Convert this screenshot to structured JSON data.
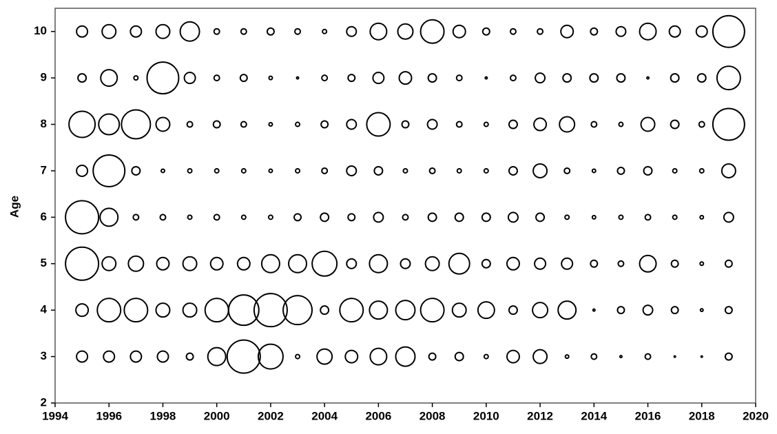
{
  "chart_data": {
    "type": "bubble",
    "y_label": "Age",
    "color": "#000000",
    "xlim": [
      1994,
      2020
    ],
    "xticks": [
      1994,
      1996,
      1998,
      2000,
      2002,
      2004,
      2006,
      2008,
      2010,
      2012,
      2014,
      2016,
      2018,
      2020
    ],
    "ylim": [
      2,
      10.5
    ],
    "yticks": [
      2,
      3,
      4,
      5,
      6,
      7,
      8,
      9,
      10
    ],
    "x": [
      1995,
      1996,
      1997,
      1998,
      1999,
      2000,
      2001,
      2002,
      2003,
      2004,
      2005,
      2006,
      2007,
      2008,
      2009,
      2010,
      2011,
      2012,
      2013,
      2014,
      2015,
      2016,
      2017,
      2018,
      2019
    ],
    "series": [
      {
        "values": [
          10,
          10,
          10,
          10,
          10,
          10,
          10,
          10,
          10,
          10,
          10,
          10,
          10,
          10,
          10,
          10,
          10,
          10,
          10,
          10,
          10,
          10,
          10,
          10,
          10
        ],
        "sizes": [
          8,
          10,
          8,
          10,
          14,
          4,
          4,
          5,
          4,
          3,
          7,
          12,
          11,
          17,
          9,
          5,
          4,
          4,
          9,
          5,
          7,
          12,
          8,
          8,
          23
        ]
      },
      {
        "values": [
          9,
          9,
          9,
          9,
          9,
          9,
          9,
          9,
          9,
          9,
          9,
          9,
          9,
          9,
          9,
          9,
          9,
          9,
          9,
          9,
          9,
          9,
          9,
          9,
          9
        ],
        "sizes": [
          6,
          12,
          3,
          23,
          8,
          4,
          5,
          2.5,
          1.5,
          4,
          5,
          8,
          9,
          6,
          4,
          1.5,
          4,
          7,
          6,
          6,
          6,
          1.5,
          6,
          6,
          17
        ]
      },
      {
        "values": [
          8,
          8,
          8,
          8,
          8,
          8,
          8,
          8,
          8,
          8,
          8,
          8,
          8,
          8,
          8,
          8,
          8,
          8,
          8,
          8,
          8,
          8,
          8,
          8,
          8
        ],
        "sizes": [
          19,
          15,
          21,
          10,
          4,
          5,
          4,
          2.5,
          3,
          5,
          7,
          17,
          5,
          7,
          4,
          3,
          6,
          9,
          11,
          4,
          3,
          10,
          6,
          4,
          23
        ]
      },
      {
        "values": [
          7,
          7,
          7,
          7,
          7,
          7,
          7,
          7,
          7,
          7,
          7,
          7,
          7,
          7,
          7,
          7,
          7,
          7,
          7,
          7,
          7,
          7,
          7,
          7,
          7
        ],
        "sizes": [
          8,
          23,
          6,
          2.5,
          3,
          3,
          3,
          2.5,
          3,
          4,
          7,
          6,
          3,
          4,
          3,
          3,
          6,
          10,
          4,
          2.5,
          5,
          6,
          3,
          3,
          10
        ]
      },
      {
        "values": [
          6,
          6,
          6,
          6,
          6,
          6,
          6,
          6,
          6,
          6,
          6,
          6,
          6,
          6,
          6,
          6,
          6,
          6,
          6,
          6,
          6,
          6,
          6,
          6,
          6
        ],
        "sizes": [
          24,
          13,
          4,
          4,
          3,
          4,
          3,
          3,
          5,
          6,
          5,
          7,
          4,
          6,
          6,
          6,
          7,
          6,
          3,
          2.5,
          3,
          4,
          3,
          2.5,
          7
        ]
      },
      {
        "values": [
          5,
          5,
          5,
          5,
          5,
          5,
          5,
          5,
          5,
          5,
          5,
          5,
          5,
          5,
          5,
          5,
          5,
          5,
          5,
          5,
          5,
          5,
          5,
          5,
          5
        ],
        "sizes": [
          24,
          10,
          11,
          9,
          10,
          9,
          9,
          13,
          13,
          18,
          7,
          13,
          7,
          10,
          15,
          6,
          9,
          8,
          8,
          5,
          4,
          12,
          5,
          2.5,
          5
        ]
      },
      {
        "values": [
          4,
          4,
          4,
          4,
          4,
          4,
          4,
          4,
          4,
          4,
          4,
          4,
          4,
          4,
          4,
          4,
          4,
          4,
          4,
          4,
          4,
          4,
          4,
          4,
          4
        ],
        "sizes": [
          9,
          17,
          17,
          10,
          10,
          17,
          22,
          24,
          21,
          6,
          17,
          13,
          14,
          17,
          10,
          12,
          6,
          11,
          13,
          1.5,
          5,
          7,
          5,
          2,
          5
        ]
      },
      {
        "values": [
          3,
          3,
          3,
          3,
          3,
          3,
          3,
          3,
          3,
          3,
          3,
          3,
          3,
          3,
          3,
          3,
          3,
          3,
          3,
          3,
          3,
          3,
          3,
          3,
          3
        ],
        "sizes": [
          8,
          8,
          8,
          8,
          5,
          13,
          24,
          18,
          3,
          11,
          9,
          12,
          14,
          5,
          6,
          3,
          9,
          10,
          2.5,
          4,
          1.5,
          4,
          1,
          1,
          5
        ]
      }
    ]
  }
}
